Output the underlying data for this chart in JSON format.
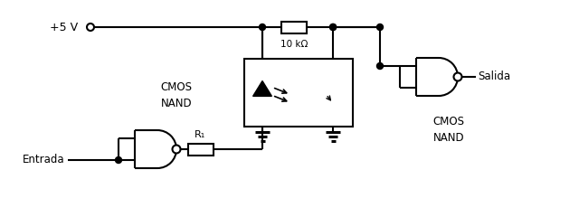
{
  "bg_color": "#ffffff",
  "line_color": "#000000",
  "lw": 1.5,
  "vcc_label": "+5 V",
  "resistor1_label": "10 kΩ",
  "resistor2_label": "R₁",
  "entrada_label": "Entrada",
  "salida_label": "Salida",
  "cmos_nand_left_label": "CMOS\nNAND",
  "cmos_nand_right_label": "CMOS\nNAND"
}
